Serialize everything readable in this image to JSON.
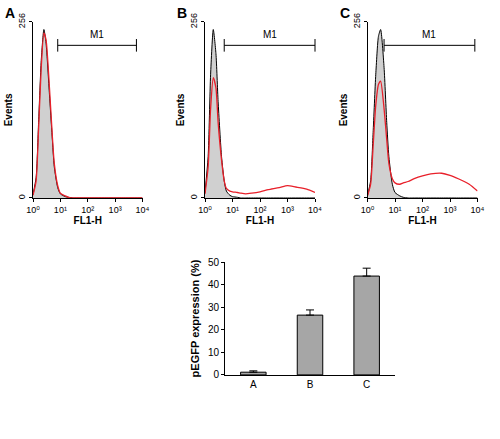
{
  "chart_data": [
    {
      "type": "line",
      "title": "A",
      "x_label": "FL1-H",
      "y_label": "Events",
      "log": "x",
      "x": [
        1,
        1.3,
        1.6,
        2,
        2.5,
        3,
        4,
        5,
        6,
        8,
        10,
        15,
        20,
        30,
        50,
        100,
        200,
        500,
        1000,
        2000,
        5000,
        10000
      ],
      "series": [
        {
          "type": "area",
          "color": "#d0d0d0",
          "values": [
            5,
            30,
            110,
            200,
            245,
            225,
            150,
            90,
            45,
            15,
            6,
            2,
            1,
            0,
            0,
            0,
            0,
            0,
            0,
            0,
            0,
            0
          ]
        },
        {
          "type": "line",
          "color": "#e8202a",
          "values": [
            4,
            25,
            100,
            190,
            240,
            230,
            160,
            95,
            50,
            18,
            7,
            3,
            1,
            0,
            0,
            0,
            0,
            0,
            0,
            0,
            0,
            0
          ]
        }
      ],
      "xlim": [
        1,
        10000
      ],
      "xticks": [
        {
          "value": 1,
          "label": "10⁰"
        },
        {
          "value": 10,
          "label": "10¹"
        },
        {
          "value": 100,
          "label": "10²"
        },
        {
          "value": 1000,
          "label": "10³"
        },
        {
          "value": 10000,
          "label": "10⁴"
        }
      ],
      "ylim": [
        0,
        256
      ],
      "yticks": [
        0,
        256
      ],
      "grid": false,
      "annotations": [
        {
          "text": "M1",
          "x": [
            8,
            6000
          ],
          "y": 222
        }
      ]
    },
    {
      "type": "line",
      "title": "B",
      "x_label": "FL1-H",
      "y_label": "Events",
      "log": "x",
      "x": [
        1,
        1.3,
        1.6,
        2,
        2.5,
        3,
        4,
        5,
        6,
        8,
        10,
        15,
        20,
        30,
        50,
        100,
        200,
        500,
        1000,
        2000,
        5000,
        10000
      ],
      "series": [
        {
          "type": "area",
          "color": "#d0d0d0",
          "values": [
            8,
            60,
            180,
            245,
            210,
            140,
            60,
            25,
            10,
            4,
            2,
            1,
            0,
            0,
            0,
            0,
            0,
            0,
            0,
            0,
            0,
            0
          ]
        },
        {
          "type": "line",
          "color": "#e8202a",
          "values": [
            6,
            45,
            130,
            175,
            160,
            110,
            55,
            25,
            14,
            10,
            9,
            8,
            7,
            6,
            7,
            9,
            12,
            15,
            18,
            16,
            13,
            8
          ]
        }
      ],
      "xlim": [
        1,
        10000
      ],
      "xticks": [
        {
          "value": 1,
          "label": "10⁰"
        },
        {
          "value": 10,
          "label": "10¹"
        },
        {
          "value": 100,
          "label": "10²"
        },
        {
          "value": 1000,
          "label": "10³"
        },
        {
          "value": 10000,
          "label": "10⁴"
        }
      ],
      "ylim": [
        0,
        256
      ],
      "yticks": [
        0,
        256
      ],
      "grid": false,
      "annotations": [
        {
          "text": "M1",
          "x": [
            5,
            10000
          ],
          "y": 222
        }
      ]
    },
    {
      "type": "line",
      "title": "C",
      "x_label": "FL1-H",
      "y_label": "Events",
      "log": "x",
      "x": [
        1,
        1.3,
        1.6,
        2,
        2.5,
        3,
        4,
        5,
        6,
        8,
        10,
        15,
        20,
        30,
        50,
        100,
        200,
        500,
        1000,
        2000,
        5000,
        10000
      ],
      "series": [
        {
          "type": "area",
          "color": "#d0d0d0",
          "values": [
            4,
            25,
            95,
            180,
            235,
            245,
            190,
            110,
            60,
            20,
            8,
            3,
            1,
            0,
            0,
            0,
            0,
            0,
            0,
            0,
            0,
            0
          ]
        },
        {
          "type": "line",
          "color": "#e8202a",
          "values": [
            3,
            20,
            75,
            135,
            165,
            170,
            130,
            85,
            50,
            28,
            22,
            20,
            22,
            24,
            28,
            32,
            35,
            36,
            33,
            28,
            20,
            10
          ]
        }
      ],
      "xlim": [
        1,
        10000
      ],
      "xticks": [
        {
          "value": 1,
          "label": "10⁰"
        },
        {
          "value": 10,
          "label": "10¹"
        },
        {
          "value": 100,
          "label": "10²"
        },
        {
          "value": 1000,
          "label": "10³"
        },
        {
          "value": 10000,
          "label": "10⁴"
        }
      ],
      "ylim": [
        0,
        256
      ],
      "yticks": [
        0,
        256
      ],
      "grid": false,
      "annotations": [
        {
          "text": "M1",
          "x": [
            4,
            8000
          ],
          "y": 222
        }
      ]
    },
    {
      "type": "bar",
      "y_label": "pEGFP expression (%)",
      "categories": [
        "A",
        "B",
        "C"
      ],
      "values": [
        1.2,
        26.5,
        43.8
      ],
      "errors": [
        0.6,
        2.3,
        3.5
      ],
      "color": "#a6a6a6",
      "ylim": [
        0,
        50
      ],
      "yticks": [
        0,
        10,
        20,
        30,
        40,
        50
      ],
      "grid": false
    }
  ]
}
